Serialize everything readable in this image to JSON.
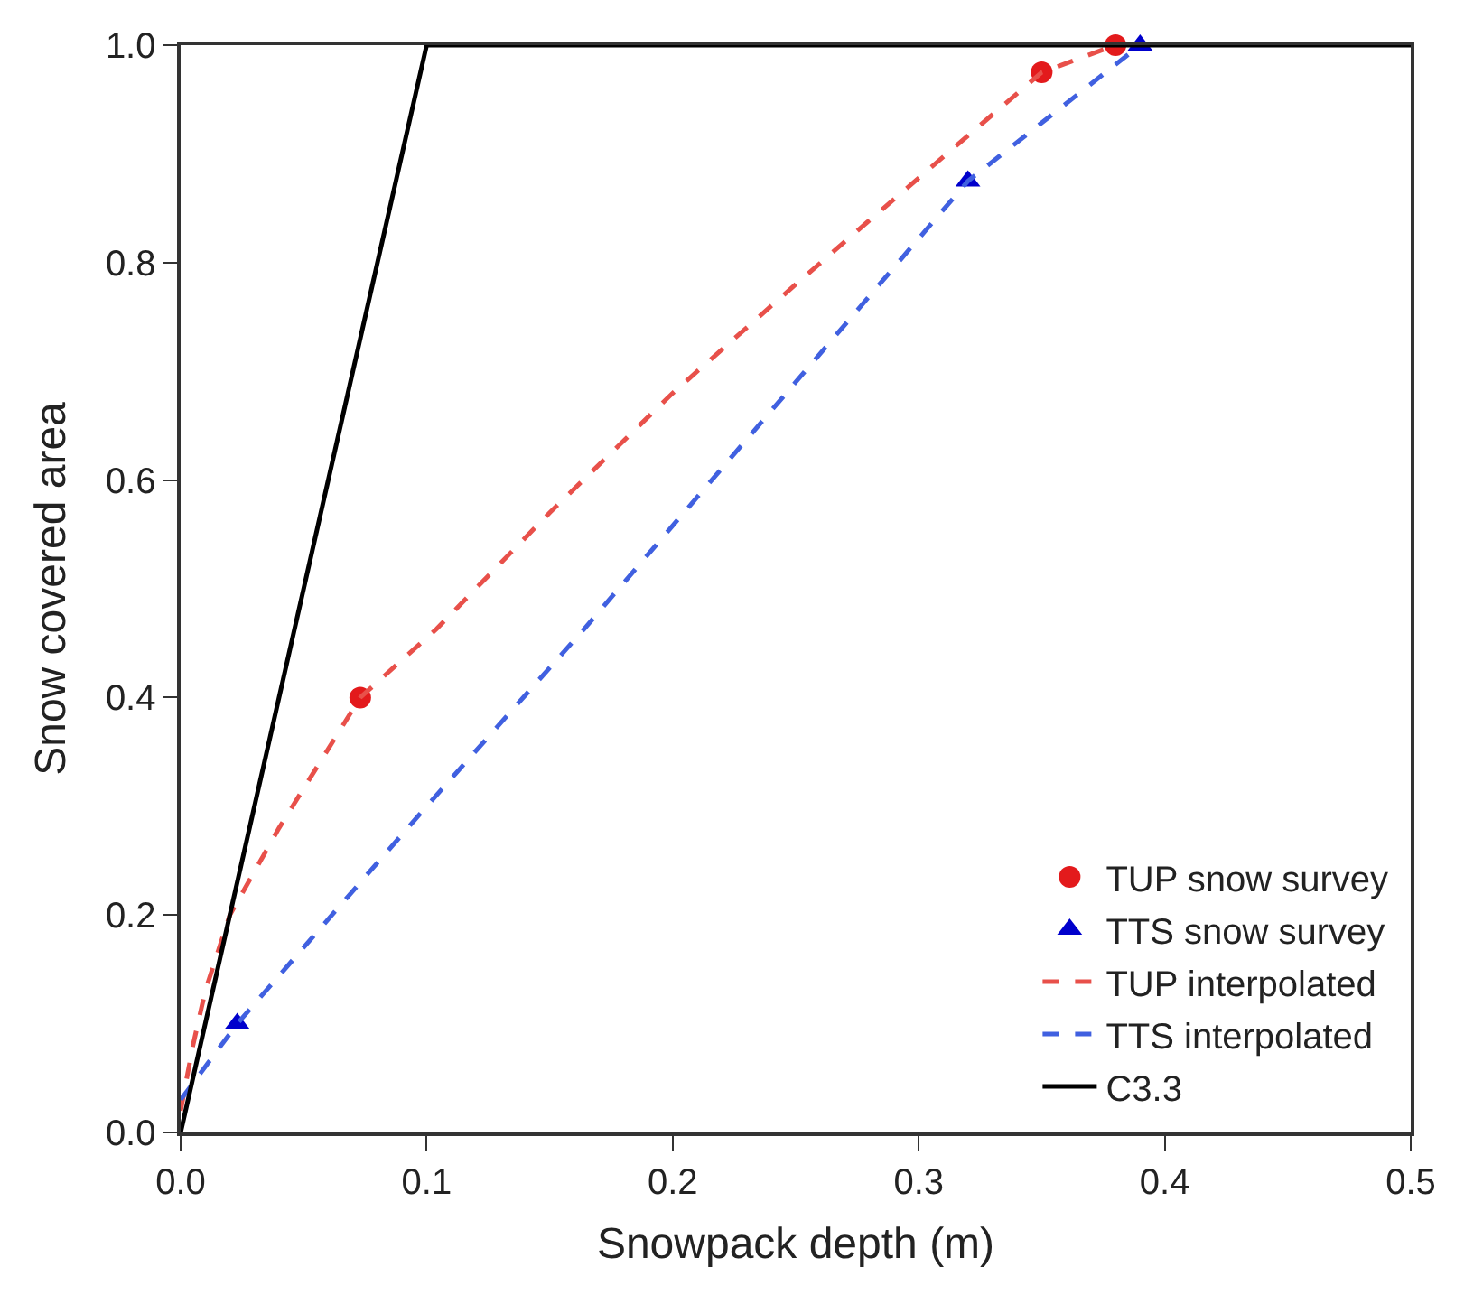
{
  "chart_data": {
    "type": "line",
    "xlabel": "Snowpack depth (m)",
    "ylabel": "Snow covered area",
    "xlim": [
      0,
      0.5
    ],
    "xticks": [
      {
        "value": 0,
        "label": "0.0"
      },
      0.1,
      0.2,
      0.3,
      0.4,
      0.5
    ],
    "ylim": [
      0,
      1
    ],
    "yticks": [
      {
        "value": 0,
        "label": "0.0"
      },
      0.2,
      0.4,
      0.6,
      0.8,
      {
        "value": 1,
        "label": "1.0"
      }
    ],
    "legend": "bottom right",
    "series": [
      {
        "name": "TUP snow survey",
        "type": "scatter",
        "marker": "circle",
        "color": "#e31a1c",
        "x": [
          0.073,
          0.35,
          0.38
        ],
        "values": [
          0.4,
          0.975,
          1.0
        ]
      },
      {
        "name": "TTS snow survey",
        "type": "scatter",
        "marker": "triangle",
        "color": "#0000cc",
        "x": [
          0.023,
          0.32,
          0.39
        ],
        "values": [
          0.1,
          0.875,
          1.0
        ]
      },
      {
        "name": "TUP interpolated",
        "line_style": "dashed",
        "color": "#e8504a",
        "x": [
          0,
          0.005,
          0.01,
          0.02,
          0.04,
          0.073,
          0.104,
          0.15,
          0.2,
          0.25,
          0.279,
          0.35,
          0.38
        ],
        "values": [
          0.02,
          0.08,
          0.13,
          0.2,
          0.28,
          0.4,
          0.463,
          0.57,
          0.68,
          0.78,
          0.837,
          0.975,
          1.0
        ]
      },
      {
        "name": "TTS interpolated",
        "line_style": "dashed",
        "color": "#4060e0",
        "x": [
          0,
          0.023,
          0.1,
          0.164,
          0.25,
          0.32,
          0.39
        ],
        "values": [
          0.03,
          0.1,
          0.3,
          0.463,
          0.69,
          0.875,
          1.0
        ]
      },
      {
        "name": "C3.3",
        "line_style": "solid",
        "color": "#000000",
        "x": [
          0,
          0.1,
          0.5
        ],
        "values": [
          0,
          1.0,
          1.0
        ]
      }
    ]
  }
}
